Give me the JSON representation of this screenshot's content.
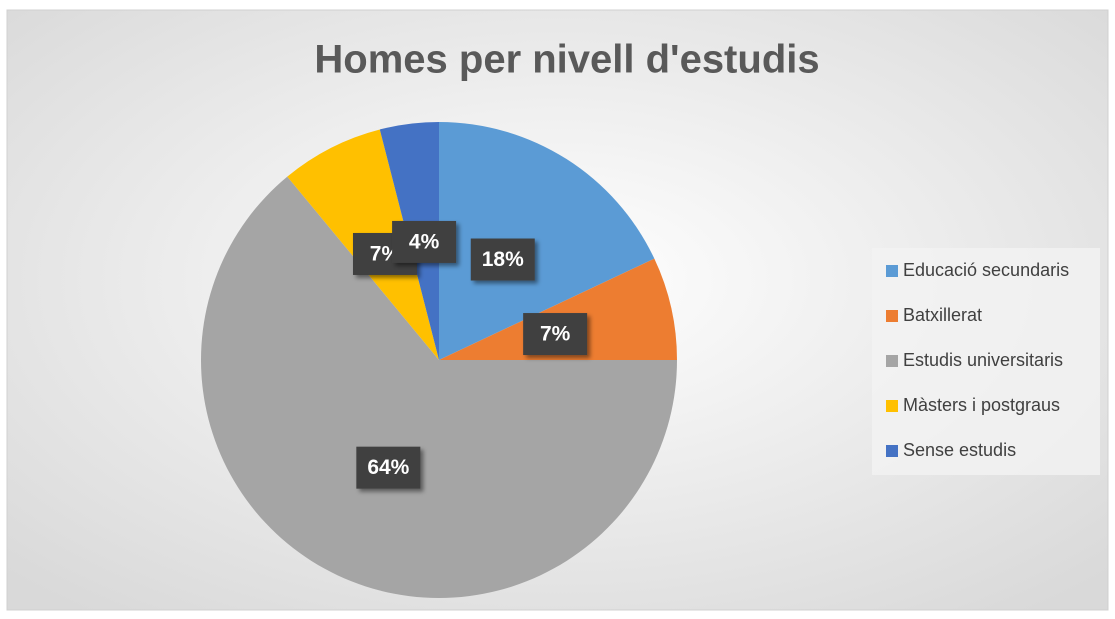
{
  "chart_data": {
    "type": "pie",
    "title": "Homes per nivell d'estudis",
    "categories": [
      "Educació secundaris",
      "Batxillerat",
      "Estudis universitaris",
      "Màsters i postgraus",
      "Sense estudis"
    ],
    "values": [
      18,
      7,
      64,
      7,
      4
    ],
    "value_labels": [
      "18%",
      "7%",
      "64%",
      "7%",
      "4%"
    ],
    "colors": [
      "#5b9bd5",
      "#ed7d31",
      "#a5a5a5",
      "#ffc000",
      "#4472c4"
    ],
    "legend": "right"
  }
}
